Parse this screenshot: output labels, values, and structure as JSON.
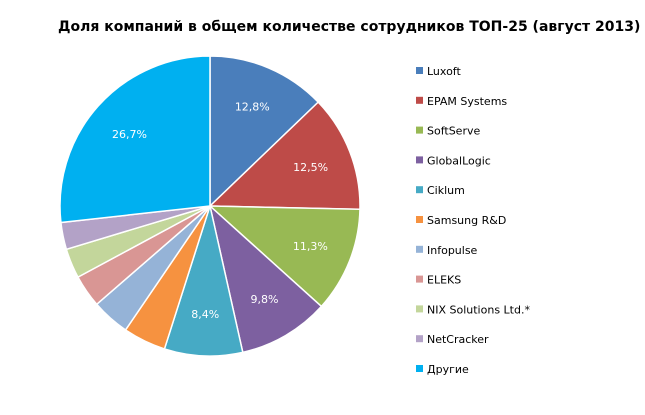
{
  "chart_data": {
    "type": "pie",
    "title": "Доля компаний в общем количестве сотрудников ТОП-25 (август 2013)",
    "categories": [
      "Luxoft",
      "EPAM Systems",
      "SoftServe",
      "GlobalLogic",
      "Ciklum",
      "Samsung R&D",
      "Infopulse",
      "ELEKS",
      "NIX Solutions Ltd.*",
      "NetCracker",
      "Другие"
    ],
    "values": [
      12.8,
      12.5,
      11.3,
      9.8,
      8.4,
      4.6,
      4.1,
      3.5,
      3.2,
      2.9,
      26.7
    ],
    "data_labels": [
      "12,8%",
      "12,5%",
      "11,3%",
      "9,8%",
      "8,4%",
      "",
      "",
      "",
      "",
      "",
      "26,7%"
    ],
    "colors": [
      "#4A7EBB",
      "#BE4B48",
      "#98B954",
      "#7D60A0",
      "#46AAC5",
      "#F69240",
      "#95B3D7",
      "#D99694",
      "#C3D69B",
      "#B3A2C7",
      "#00B0F0"
    ],
    "legend_position": "right"
  }
}
